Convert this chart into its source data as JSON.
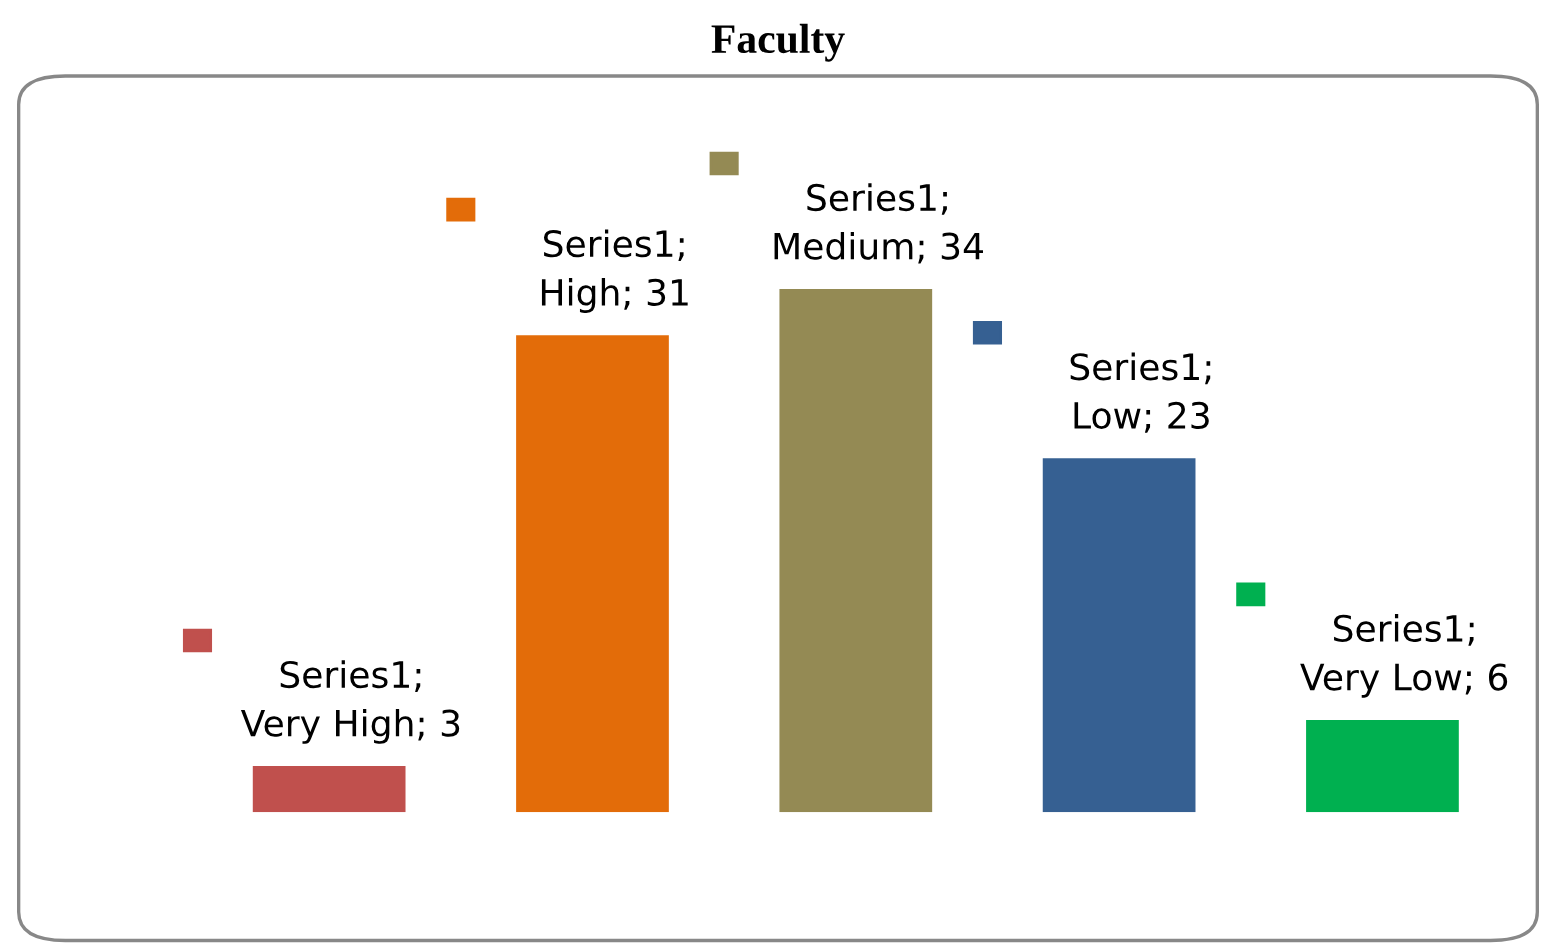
{
  "chart_data": {
    "type": "bar",
    "title": "Faculty",
    "categories": [
      null,
      null,
      null,
      null,
      null
    ],
    "values": [
      3,
      31,
      34,
      23,
      6
    ],
    "colors": [
      "#c0504d",
      "#e36c09",
      "#948a54",
      "#366092",
      "#00b050"
    ],
    "value_labels": [
      "Series1;\nVery High; 3",
      "Series1;\nHigh; 31",
      "Series1;\nMedium; 34",
      "Series1;\nLow; 23",
      "Series1;\nVery Low; 6"
    ],
    "tick_labels": false
  }
}
